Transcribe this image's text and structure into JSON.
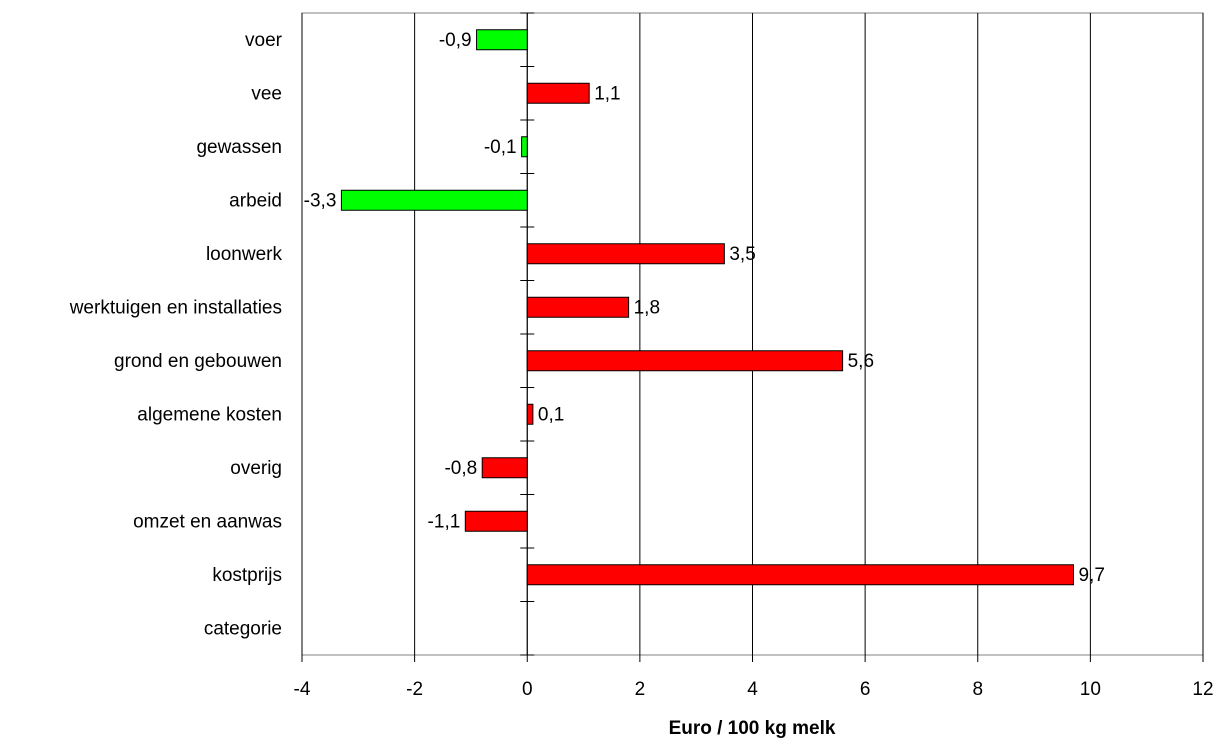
{
  "chart_data": {
    "type": "hbar",
    "categories": [
      "voer",
      "vee",
      "gewassen",
      "arbeid",
      "loonwerk",
      "werktuigen en installaties",
      "grond en gebouwen",
      "algemene kosten",
      "overig",
      "omzet en aanwas",
      "kostprijs",
      "categorie"
    ],
    "values": [
      -0.9,
      1.1,
      -0.1,
      -3.3,
      3.5,
      1.8,
      5.6,
      0.1,
      -0.8,
      -1.1,
      9.7,
      null
    ],
    "value_labels": [
      "-0,9",
      "1,1",
      "-0,1",
      "-3,3",
      "3,5",
      "1,8",
      "5,6",
      "0,1",
      "-0,8",
      "-1,1",
      "9,7",
      null
    ],
    "colors": [
      "#00ff00",
      "#ff0000",
      "#00ff00",
      "#00ff00",
      "#ff0000",
      "#ff0000",
      "#ff0000",
      "#ff0000",
      "#ff0000",
      "#ff0000",
      "#ff0000",
      null
    ],
    "xlabel": "Euro / 100 kg melk",
    "xlim": [
      -4,
      12
    ],
    "xticks": [
      -4,
      -2,
      0,
      2,
      4,
      6,
      8,
      10,
      12
    ],
    "grid": true
  }
}
